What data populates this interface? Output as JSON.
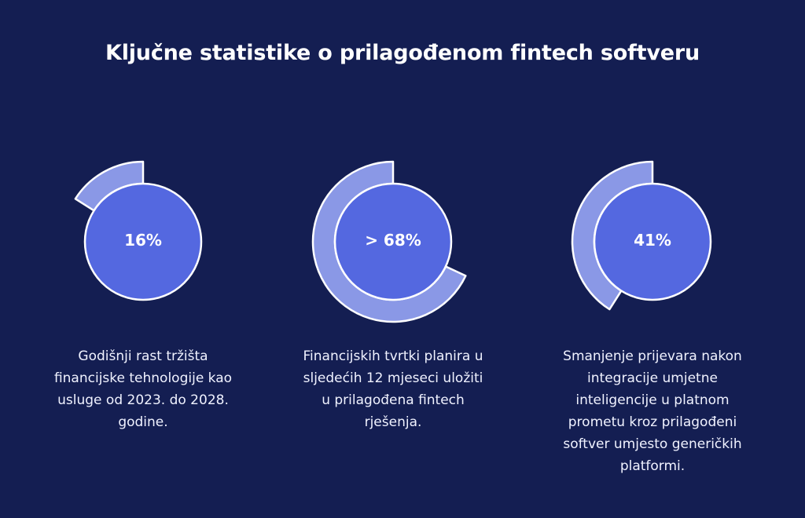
{
  "title": "Ključne statistike o prilagođenom fintech softveru",
  "colors": {
    "background": "#141e52",
    "ring": "#8a98e6",
    "core": "#5468e0",
    "stroke": "#ffffff",
    "text": "#ffffff"
  },
  "chart_data": {
    "type": "pie",
    "title": "Ključne statistike o prilagođenom fintech softveru",
    "items": [
      {
        "value_label": "16%",
        "value": 16,
        "description": "Godišnji rast tržišta financijske tehnologije kao usluge od 2023. do 2028. godine."
      },
      {
        "value_label": "> 68%",
        "value": 68,
        "description": "Financijskih tvrtki planira u sljedećih 12 mjeseci uložiti u prilagođena fintech rješenja."
      },
      {
        "value_label": "41%",
        "value": 41,
        "description": "Smanjenje prijevara nakon integracije umjetne inteligencije u platnom prometu kroz prilagođeni softver umjesto generičkih platformi."
      }
    ]
  }
}
